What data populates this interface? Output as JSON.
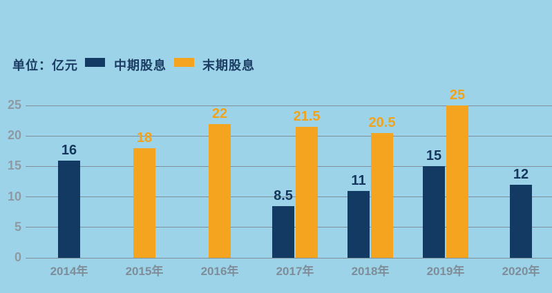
{
  "legend": {
    "unit_label": "单位：亿元"
  },
  "colors": {
    "background": "#9dd3e8",
    "gridline": "#7e8f9a",
    "tick_label": "#8d9aa4",
    "category_label": "#7e8d98",
    "legend_text": "#1b3c63",
    "interim_series": "#133a62",
    "final_series": "#f5a41f"
  },
  "chart_data": {
    "type": "bar",
    "title": "",
    "unit_label": "单位：亿元",
    "categories": [
      "2014年",
      "2015年",
      "2016年",
      "2017年",
      "2018年",
      "2019年",
      "2020年"
    ],
    "series": [
      {
        "name": "中期股息",
        "color": "#133a62",
        "label_color": "#14365d",
        "values": [
          16,
          null,
          null,
          8.5,
          11,
          15,
          12
        ]
      },
      {
        "name": "末期股息",
        "color": "#f5a41f",
        "label_color": "#f0a31c",
        "values": [
          null,
          18,
          22,
          21.5,
          20.5,
          25,
          null
        ]
      }
    ],
    "ylim": [
      0,
      25
    ],
    "yticks": [
      0,
      5,
      10,
      15,
      20,
      25
    ],
    "grid": true,
    "legend_position": "top-left",
    "value_labels_shown": true
  }
}
